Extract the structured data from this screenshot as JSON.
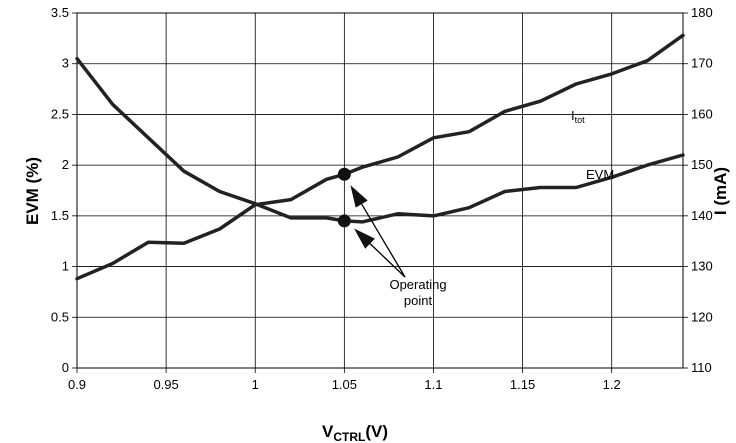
{
  "chart_data": {
    "type": "line",
    "xlabel": {
      "main": "V",
      "sub": "CTRL",
      "suffix": "(V)"
    },
    "ylabel_left": "EVM (%)",
    "ylabel_right": "I (mA)",
    "xlim": [
      0.9,
      1.24
    ],
    "ylim_left": [
      0,
      3.5
    ],
    "ylim_right": [
      110,
      180
    ],
    "x_ticks": [
      0.9,
      0.95,
      1,
      1.05,
      1.1,
      1.15,
      1.2
    ],
    "x_tick_labels": [
      "0.9",
      "0.95",
      "1",
      "1.05",
      "1.1",
      "1.15",
      "1.2"
    ],
    "y_left_ticks": [
      0,
      0.5,
      1,
      1.5,
      2,
      2.5,
      3,
      3.5
    ],
    "y_left_tick_labels": [
      "0",
      "0.5",
      "1",
      "1.5",
      "2",
      "2.5",
      "3",
      "3.5"
    ],
    "y_right_ticks": [
      110,
      120,
      130,
      140,
      150,
      160,
      170,
      180
    ],
    "y_right_tick_labels": [
      "110",
      "120",
      "130",
      "140",
      "150",
      "160",
      "170",
      "180"
    ],
    "grid": true,
    "series": [
      {
        "name": "EVM",
        "axis": "left",
        "x": [
          0.9,
          0.92,
          0.94,
          0.96,
          0.98,
          1.0,
          1.02,
          1.04,
          1.05,
          1.06,
          1.08,
          1.1,
          1.12,
          1.14,
          1.16,
          1.18,
          1.2,
          1.22,
          1.24
        ],
        "y": [
          3.05,
          2.6,
          2.27,
          1.94,
          1.74,
          1.62,
          1.48,
          1.48,
          1.45,
          1.44,
          1.52,
          1.5,
          1.58,
          1.74,
          1.78,
          1.78,
          1.88,
          2.0,
          2.1
        ]
      },
      {
        "name": "I_tot",
        "label_main": "I",
        "label_sub": "tot",
        "axis": "right",
        "x": [
          0.9,
          0.92,
          0.94,
          0.96,
          0.98,
          1.0,
          1.02,
          1.04,
          1.05,
          1.06,
          1.08,
          1.1,
          1.12,
          1.14,
          1.16,
          1.18,
          1.2,
          1.22,
          1.24
        ],
        "y": [
          127.6,
          130.6,
          134.8,
          134.6,
          137.4,
          142.2,
          143.2,
          147.2,
          148.2,
          149.6,
          151.6,
          155.4,
          156.6,
          160.6,
          162.6,
          166.0,
          168.0,
          170.6,
          175.6
        ]
      }
    ],
    "series_labels": {
      "evm": "EVM"
    },
    "operating_point": {
      "label_line1": "Operating",
      "label_line2": "point",
      "x": 1.05,
      "evm_value": 1.45,
      "current_value": 148.2
    }
  }
}
